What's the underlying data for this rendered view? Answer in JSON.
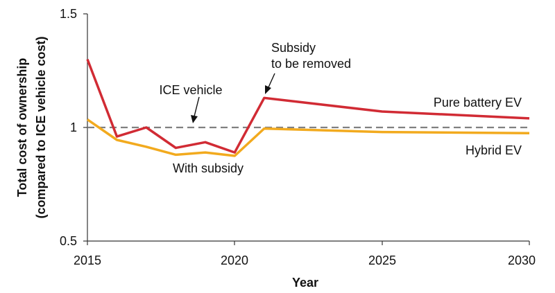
{
  "chart_data": {
    "type": "line",
    "title": "",
    "xlabel": "Year",
    "ylabel": [
      "Total cost of ownership",
      "(compared to ICE vehicle cost)"
    ],
    "xlim": [
      2015,
      2030
    ],
    "ylim": [
      0.5,
      1.5
    ],
    "x_ticks": [
      "2015",
      "2020",
      "2025",
      "2030"
    ],
    "y_ticks": [
      "0.5",
      "1",
      "1.5"
    ],
    "grid": false,
    "legend": "none",
    "series": [
      {
        "name": "Pure battery EV",
        "color": "#d12b34",
        "x": [
          2015,
          2016,
          2017,
          2018,
          2019,
          2020,
          2021,
          2025,
          2030
        ],
        "y": [
          1.3,
          0.96,
          1.0,
          0.91,
          0.935,
          0.89,
          1.13,
          1.07,
          1.04
        ]
      },
      {
        "name": "Hybrid EV",
        "color": "#f2aa1e",
        "x": [
          2015,
          2016,
          2017,
          2018,
          2019,
          2020,
          2021,
          2025,
          2030
        ],
        "y": [
          1.035,
          0.945,
          0.915,
          0.88,
          0.89,
          0.875,
          0.995,
          0.98,
          0.975
        ]
      },
      {
        "name": "ICE vehicle",
        "color": "#808080",
        "style": "dashed",
        "x": [
          2015,
          2030
        ],
        "y": [
          1.0,
          1.0
        ]
      }
    ],
    "annotations": {
      "ice": "ICE vehicle",
      "subsidy_removed_line1": "Subsidy",
      "subsidy_removed_line2": "to be removed",
      "with_subsidy": "With subsidy",
      "pure_ev": "Pure battery EV",
      "hybrid_ev": "Hybrid EV"
    }
  }
}
